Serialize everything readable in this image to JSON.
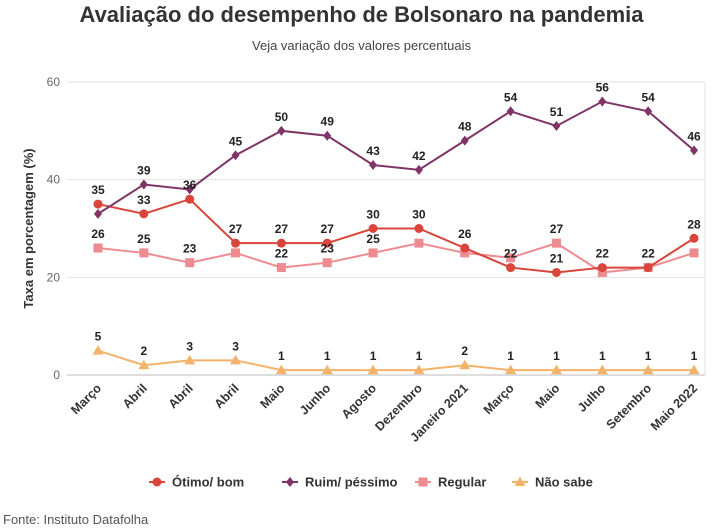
{
  "chart_data": {
    "type": "line",
    "title": "Avaliação do desempenho de Bolsonaro na pandemia",
    "subtitle": "Veja variação dos valores percentuais",
    "ylabel": "Taxa em porcentagem (%)",
    "xlabel": "",
    "ylim": [
      0,
      60
    ],
    "yticks": [
      0,
      20,
      40,
      60
    ],
    "grid": true,
    "legend_position": "bottom",
    "categories": [
      "Março",
      "Abril",
      "Abril",
      "Abril",
      "Maio",
      "Junho",
      "Agosto",
      "Dezembro",
      "Janeiro 2021",
      "Março",
      "Maio",
      "Julho",
      "Setembro",
      "Maio 2022"
    ],
    "series": [
      {
        "name": "Ótimo/ bom",
        "color": "#d9453b",
        "marker": "circle",
        "values": [
          35,
          33,
          36,
          27,
          27,
          27,
          30,
          30,
          26,
          22,
          21,
          22,
          22,
          28
        ],
        "labels": [
          35,
          33,
          36,
          27,
          27,
          27,
          30,
          30,
          26,
          22,
          21,
          22,
          22,
          28
        ]
      },
      {
        "name": "Ruim/ péssimo",
        "color": "#7e3566",
        "marker": "diamond",
        "values": [
          33,
          39,
          38,
          45,
          50,
          49,
          43,
          42,
          48,
          54,
          51,
          56,
          54,
          46
        ],
        "labels": [
          null,
          39,
          null,
          45,
          50,
          49,
          43,
          42,
          48,
          54,
          51,
          56,
          54,
          46
        ]
      },
      {
        "name": "Regular",
        "color": "#ee8b91",
        "marker": "square",
        "values": [
          26,
          25,
          23,
          25,
          22,
          23,
          25,
          27,
          25,
          24,
          27,
          21,
          22,
          25
        ],
        "labels": [
          26,
          25,
          23,
          null,
          22,
          23,
          25,
          null,
          null,
          null,
          27,
          null,
          null,
          null
        ]
      },
      {
        "name": "Não sabe",
        "color": "#f4b26a",
        "marker": "triangle",
        "values": [
          5,
          2,
          3,
          3,
          1,
          1,
          1,
          1,
          2,
          1,
          1,
          1,
          1,
          1
        ],
        "labels": [
          5,
          2,
          3,
          3,
          1,
          1,
          1,
          1,
          2,
          1,
          1,
          1,
          1,
          1
        ]
      }
    ]
  },
  "source": "Fonte: Instituto Datafolha"
}
